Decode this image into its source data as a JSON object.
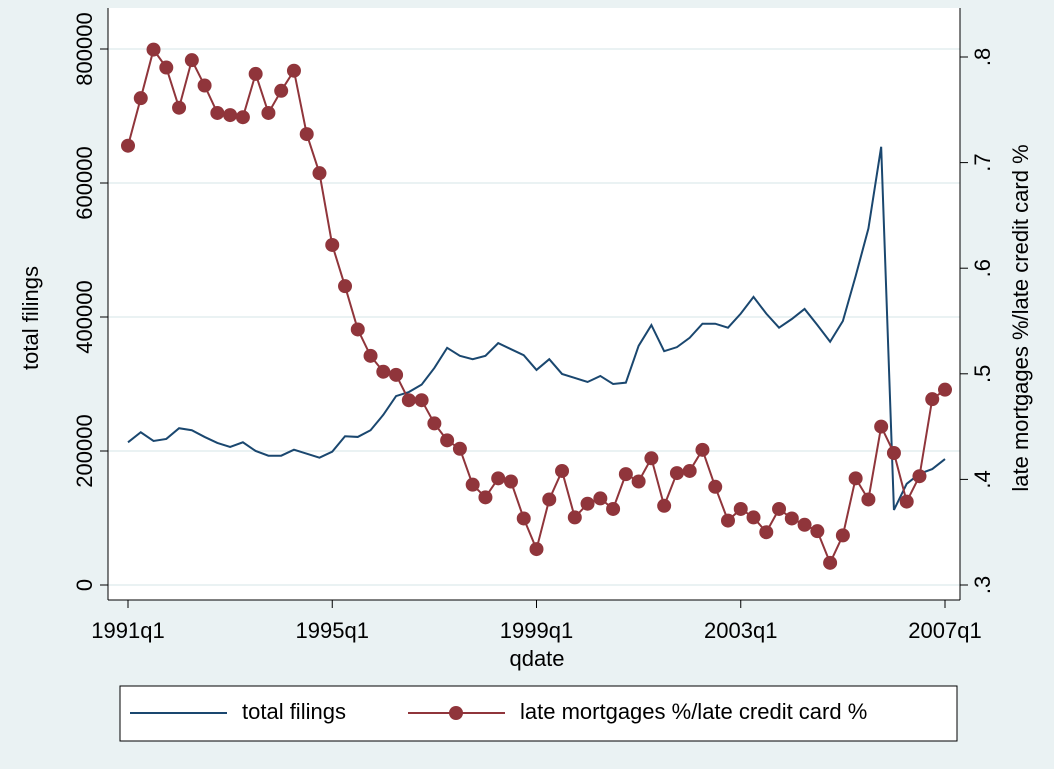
{
  "chart_data": {
    "type": "line",
    "x_label": "qdate",
    "y_label": "total filings",
    "y2_label": "late mortgages %/late credit card %",
    "x": [
      124,
      125,
      126,
      127,
      128,
      129,
      130,
      131,
      132,
      133,
      134,
      135,
      136,
      137,
      138,
      139,
      140,
      141,
      142,
      143,
      144,
      145,
      146,
      147,
      148,
      149,
      150,
      151,
      152,
      153,
      154,
      155,
      156,
      157,
      158,
      159,
      160,
      161,
      162,
      163,
      164,
      165,
      166,
      167,
      168,
      169,
      170,
      171,
      172,
      173,
      174,
      175,
      176,
      177,
      178,
      179,
      180,
      181,
      182,
      183,
      184,
      185,
      186,
      187,
      188
    ],
    "xlim": [
      124,
      188
    ],
    "xticks": [
      {
        "value": 124,
        "label": "1991q1"
      },
      {
        "value": 140,
        "label": "1995q1"
      },
      {
        "value": 156,
        "label": "1999q1"
      },
      {
        "value": 172,
        "label": "2003q1"
      },
      {
        "value": 188,
        "label": "2007q1"
      }
    ],
    "ylim": [
      0,
      800000
    ],
    "yticks": [
      0,
      200000,
      400000,
      600000,
      800000
    ],
    "y2lim": [
      0.3,
      0.8
    ],
    "y2ticks": [
      {
        "value": 0.3,
        "label": ".3"
      },
      {
        "value": 0.4,
        "label": ".4"
      },
      {
        "value": 0.5,
        "label": ".5"
      },
      {
        "value": 0.6,
        "label": ".6"
      },
      {
        "value": 0.7,
        "label": ".7"
      },
      {
        "value": 0.8,
        "label": ".8"
      }
    ],
    "grid": true,
    "legend": "bottom",
    "series": [
      {
        "name": "total filings",
        "color": "#1a476f",
        "markers": false,
        "values": [
          213000,
          228000,
          215000,
          218000,
          234000,
          231000,
          221000,
          212000,
          206000,
          213000,
          200000,
          193000,
          193000,
          202000,
          196000,
          190000,
          199000,
          222000,
          221000,
          231000,
          254000,
          282000,
          288000,
          299000,
          324000,
          354000,
          342000,
          337000,
          342000,
          361000,
          352000,
          343000,
          321000,
          337000,
          315000,
          309000,
          303000,
          312000,
          300000,
          302000,
          357000,
          388000,
          349000,
          355000,
          369000,
          390000,
          390000,
          384000,
          405000,
          430000,
          405000,
          384000,
          397000,
          412000,
          388000,
          363000,
          394000,
          461000,
          532000,
          654000,
          112000,
          151000,
          166000,
          173000,
          188000
        ]
      },
      {
        "name": "late mortgages %/late credit card %",
        "color": "#90353b",
        "markers": true,
        "axis": "y2",
        "values": [
          0.716,
          0.761,
          0.807,
          0.79,
          0.752,
          0.797,
          0.773,
          0.747,
          0.745,
          0.743,
          0.784,
          0.747,
          0.768,
          0.787,
          0.727,
          0.69,
          0.622,
          0.583,
          0.542,
          0.517,
          0.502,
          0.499,
          0.475,
          0.475,
          0.453,
          0.437,
          0.429,
          0.395,
          0.383,
          0.401,
          0.398,
          0.363,
          0.334,
          0.381,
          0.408,
          0.364,
          0.377,
          0.382,
          0.372,
          0.405,
          0.398,
          0.42,
          0.375,
          0.406,
          0.408,
          0.428,
          0.393,
          0.361,
          0.372,
          0.364,
          0.35,
          0.372,
          0.363,
          0.357,
          0.351,
          0.321,
          0.347,
          0.401,
          0.381,
          0.45,
          0.425,
          0.379,
          0.403,
          0.476,
          0.485
        ]
      }
    ]
  }
}
